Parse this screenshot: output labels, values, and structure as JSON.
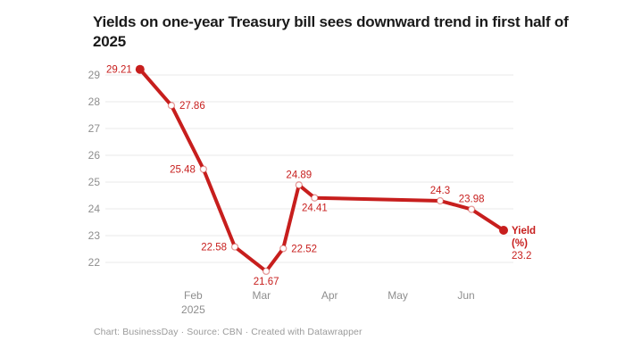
{
  "title": "Yields on one-year Treasury bill sees downward trend in first half of 2025",
  "footer": {
    "text": "Chart: BusinessDay · Source: CBN · Created with Datawrapper"
  },
  "colors": {
    "line": "#c71e1d",
    "label": "#c71e1d",
    "marker_ring": "rgba(199,30,29,0.45)",
    "axis_text": "#8e8e8e",
    "grid": "#e8e8e8",
    "title": "#1a1a1a",
    "footer": "#9b9b9b",
    "background": "#ffffff"
  },
  "chart_data": {
    "type": "line",
    "title": "Yields on one-year Treasury bill sees downward trend in first half of 2025",
    "xlabel": "",
    "ylabel": "Yield (%)",
    "grid": "horizontal",
    "x_axis": {
      "unit": "months from Jan 2025",
      "range": [
        -0.3,
        5.7
      ],
      "ticks": [
        {
          "pos": 1,
          "label": "Feb",
          "sublabel": "2025"
        },
        {
          "pos": 2,
          "label": "Mar"
        },
        {
          "pos": 3,
          "label": "Apr"
        },
        {
          "pos": 4,
          "label": "May"
        },
        {
          "pos": 5,
          "label": "Jun"
        }
      ]
    },
    "y_axis": {
      "range": [
        21.4,
        29.4
      ],
      "ticks": [
        29,
        28,
        27,
        26,
        25,
        24,
        23,
        22
      ]
    },
    "series": [
      {
        "name": "Yield (%)",
        "color": "#c71e1d",
        "points": [
          {
            "x": 0.22,
            "y": 29.21,
            "label": "29.21",
            "label_pos": "left",
            "marker": "dot"
          },
          {
            "x": 0.68,
            "y": 27.86,
            "label": "27.86",
            "label_pos": "right",
            "marker": "ring"
          },
          {
            "x": 1.15,
            "y": 25.48,
            "label": "25.48",
            "label_pos": "left",
            "marker": "ring"
          },
          {
            "x": 1.61,
            "y": 22.58,
            "label": "22.58",
            "label_pos": "left",
            "marker": "ring"
          },
          {
            "x": 2.07,
            "y": 21.67,
            "label": "21.67",
            "label_pos": "below",
            "marker": "ring"
          },
          {
            "x": 2.32,
            "y": 22.52,
            "label": "22.52",
            "label_pos": "right",
            "marker": "ring"
          },
          {
            "x": 2.55,
            "y": 24.89,
            "label": "24.89",
            "label_pos": "above",
            "marker": "ring"
          },
          {
            "x": 2.78,
            "y": 24.41,
            "label": "24.41",
            "label_pos": "below",
            "marker": "ring"
          },
          {
            "x": 4.62,
            "y": 24.3,
            "label": "24.3",
            "label_pos": "above",
            "marker": "ring"
          },
          {
            "x": 5.08,
            "y": 23.98,
            "label": "23.98",
            "label_pos": "above",
            "marker": "ring"
          },
          {
            "x": 5.55,
            "y": 23.2,
            "label": "23.2",
            "label_pos": "legend",
            "marker": "dot"
          }
        ]
      }
    ],
    "end_legend": {
      "name": "Yield",
      "unit": "(%)",
      "value": "23.2"
    },
    "legend_position": "end-of-line"
  }
}
